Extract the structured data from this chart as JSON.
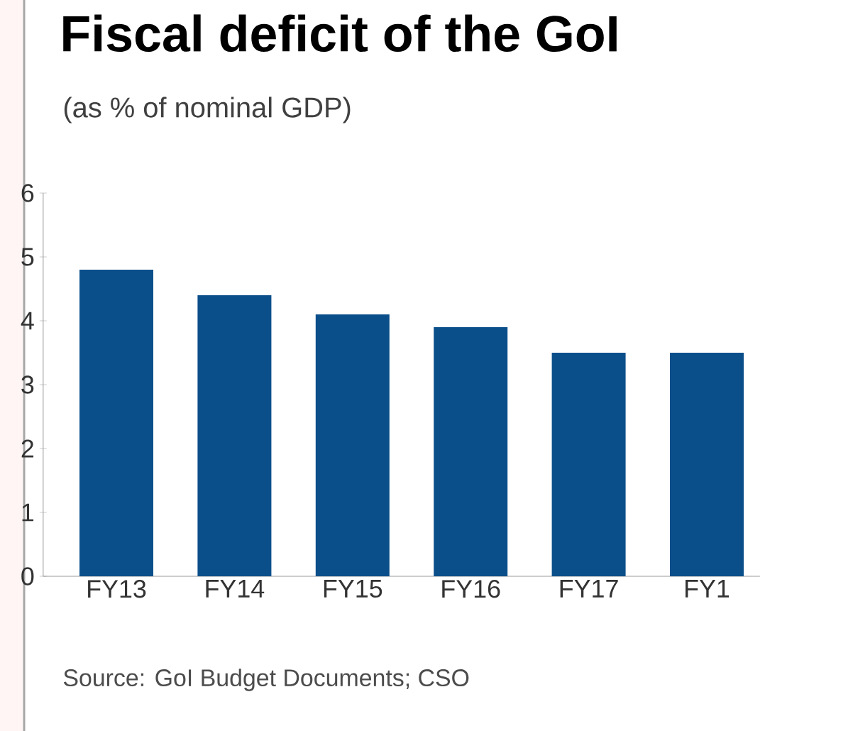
{
  "chart_data": {
    "type": "bar",
    "title": "Fiscal deficit of the GoI",
    "subtitle": "(as % of nominal GDP)",
    "categories": [
      "FY13",
      "FY14",
      "FY15",
      "FY16",
      "FY17",
      "FY1"
    ],
    "values": [
      4.8,
      4.4,
      4.1,
      3.9,
      3.5,
      3.5
    ],
    "color": "#0b4f8a",
    "ylim": [
      0,
      6
    ],
    "yticks": [
      0,
      1,
      2,
      3,
      4,
      5,
      6
    ],
    "grid": false,
    "annotations": [
      "Source: GoI Budget Documents; CSO"
    ]
  }
}
